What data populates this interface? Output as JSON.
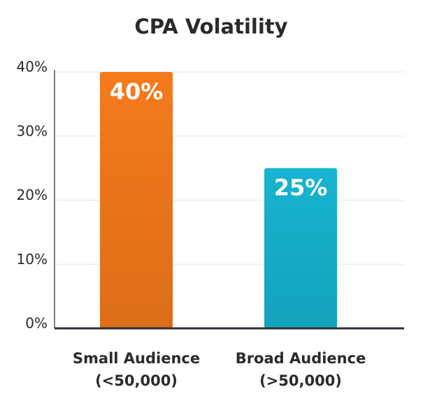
{
  "chart_data": {
    "type": "bar",
    "title": "CPA Volatility",
    "categories": [
      [
        "Small Audience",
        "(<50,000)"
      ],
      [
        "Broad Audience",
        "(>50,000)"
      ]
    ],
    "values": [
      40,
      25
    ],
    "value_labels": [
      "40%",
      "25%"
    ],
    "colors": [
      "#f57a1c",
      "#17b4d0"
    ],
    "ylim": [
      0,
      40
    ],
    "yticks": [
      {
        "value": 0,
        "label": "0%"
      },
      {
        "value": 10,
        "label": "10%"
      },
      {
        "value": 20,
        "label": "20%"
      },
      {
        "value": 30,
        "label": "30%"
      },
      {
        "value": 40,
        "label": "40%"
      }
    ],
    "grid": true
  }
}
